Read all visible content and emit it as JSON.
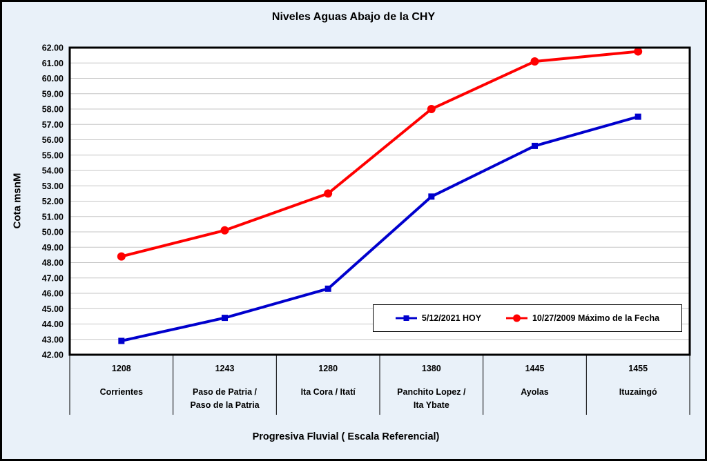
{
  "chart_data": {
    "type": "line",
    "title": "Niveles Aguas Abajo de la CHY",
    "xlabel": "Progresiva Fluvial ( Escala Referencial)",
    "ylabel": "Cota msnM",
    "ylim": [
      42,
      62
    ],
    "y_tick_step": 1,
    "y_tick_decimals": 2,
    "grid": true,
    "legend_position": "inside bottom-right",
    "categories": [
      "1208",
      "1243",
      "1280",
      "1380",
      "1445",
      "1455"
    ],
    "category_names": [
      [
        "Corrientes"
      ],
      [
        "Paso de Patria /",
        "Paso de la Patria"
      ],
      [
        "Ita Cora / Itatí"
      ],
      [
        "Panchito Lopez /",
        "Ita Ybate"
      ],
      [
        "Ayolas"
      ],
      [
        "Ituzaingó"
      ]
    ],
    "series": [
      {
        "name": "5/12/2021 HOY",
        "color": "#0000CD",
        "marker": "square",
        "values": [
          42.9,
          44.4,
          46.3,
          52.3,
          55.6,
          57.5
        ]
      },
      {
        "name": "10/27/2009 Máximo de la Fecha",
        "color": "#FF0000",
        "marker": "circle",
        "values": [
          48.4,
          50.1,
          52.5,
          58.0,
          61.1,
          61.75
        ]
      }
    ],
    "colors": {
      "background": "#E9F1F9",
      "plot_background": "#FFFFFF",
      "gridline": "#C6C6C6",
      "border": "#000000"
    }
  }
}
